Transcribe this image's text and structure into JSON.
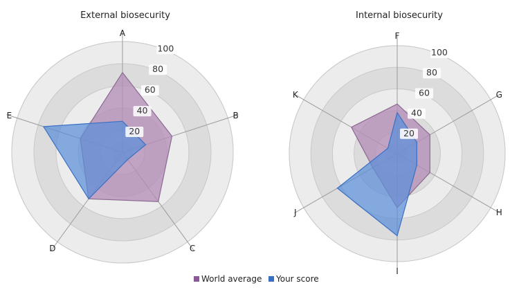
{
  "chart_data": [
    {
      "type": "radar",
      "title": "External biosecurity",
      "axes": [
        "A",
        "B",
        "C",
        "D",
        "E"
      ],
      "rmax": 100,
      "ticks": [
        20,
        40,
        60,
        80,
        100
      ],
      "series": [
        {
          "name": "World average",
          "values": [
            72,
            47,
            55,
            52,
            40
          ]
        },
        {
          "name": "Your score",
          "values": [
            28,
            22,
            8,
            52,
            75
          ]
        }
      ]
    },
    {
      "type": "radar",
      "title": "Internal biosecurity",
      "axes": [
        "F",
        "G",
        "H",
        "I",
        "J",
        "K"
      ],
      "rmax": 100,
      "ticks": [
        20,
        40,
        60,
        80,
        100
      ],
      "series": [
        {
          "name": "World average",
          "values": [
            46,
            35,
            35,
            50,
            26,
            49
          ]
        },
        {
          "name": "Your score",
          "values": [
            38,
            21,
            21,
            76,
            64,
            10
          ]
        }
      ]
    }
  ],
  "legend": {
    "items": [
      {
        "name": "World average",
        "color": "#8b5a96"
      },
      {
        "name": "Your score",
        "color": "#3a6fc4"
      }
    ]
  },
  "colors": {
    "world_fill": "#b38bb6",
    "world_stroke": "#8b6a92",
    "your_fill": "#5b8fd8",
    "your_stroke": "#3a6fc4",
    "ring_light": "#ececec",
    "ring_dark": "#dcdcdc",
    "grid_line": "#c8c8c8",
    "tick_bg": "#ffffff"
  }
}
